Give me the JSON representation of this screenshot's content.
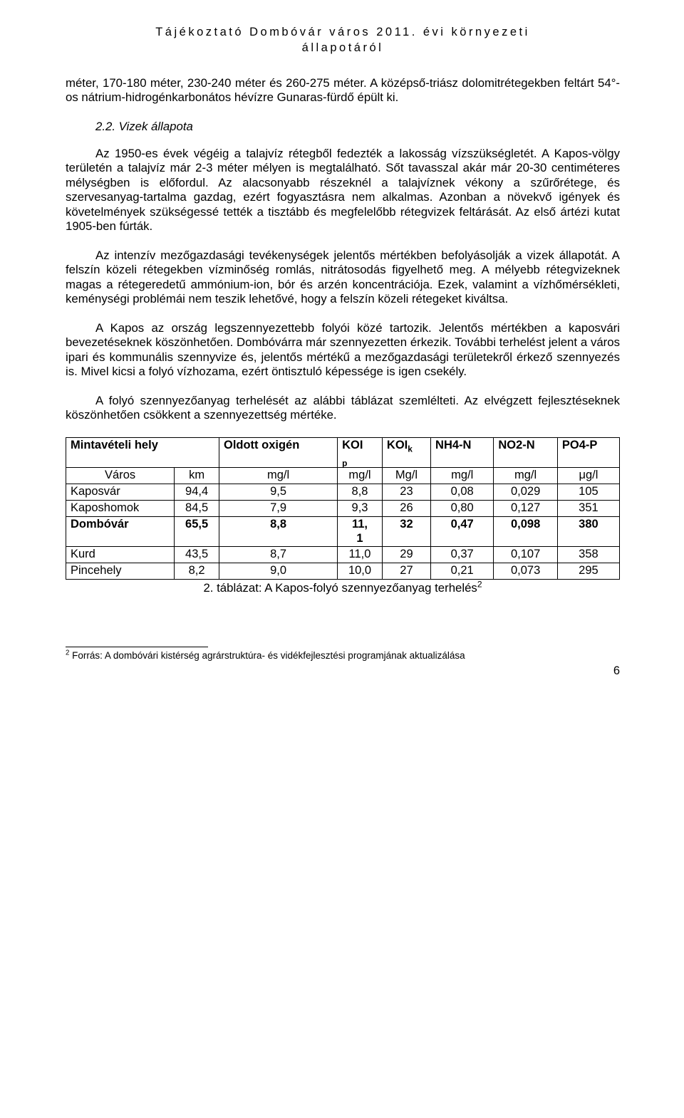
{
  "header": {
    "line1": "Tájékoztató Dombóvár város 2011. évi környezeti",
    "line2": "állapotáról"
  },
  "paragraphs": {
    "p1": "méter, 170-180 méter, 230-240 méter és 260-275 méter. A középső-triász dolomitrétegekben feltárt 54°-os nátrium-hidrogénkarbonátos hévízre Gunaras-fürdő épült ki.",
    "section_title": "2.2. Vizek állapota",
    "p2": "Az 1950-es évek végéig a talajvíz rétegből fedezték a lakosság vízszükségletét. A Kapos-völgy területén a talajvíz már 2-3 méter mélyen is megtalálható. Sőt tavasszal akár már 20-30 centiméteres mélységben is előfordul. Az alacsonyabb részeknél a talajvíznek vékony a szűrőrétege, és szervesanyag-tartalma gazdag, ezért fogyasztásra nem alkalmas. Azonban a növekvő igények és követelmények szükségessé tették a tisztább és megfelelőbb rétegvizek feltárását. Az első ártézi kutat 1905-ben fúrták.",
    "p3": "Az intenzív mezőgazdasági tevékenységek jelentős mértékben befolyásolják a vizek állapotát. A felszín közeli rétegekben vízminőség romlás, nitrátosodás figyelhető meg. A mélyebb rétegvizeknek magas a rétegeredetű ammónium-ion, bór és arzén koncentrációja. Ezek, valamint a vízhőmérsékleti, keménységi problémái nem teszik lehetővé, hogy a felszín közeli rétegeket kiváltsa.",
    "p4": "A Kapos az ország legszennyezettebb folyói közé tartozik. Jelentős mértékben a kaposvári bevezetéseknek köszönhetően. Dombóvárra már szennyezetten érkezik. További terhelést jelent a város ipari és kommunális szennyvize és, jelentős mértékű a mezőgazdasági területekről érkező szennyezés is. Mivel kicsi a folyó vízhozama, ezért öntisztuló képessége is igen csekély.",
    "p5": "A folyó szennyezőanyag terhelését az alábbi táblázat szemlélteti. Az elvégzett fejlesztéseknek köszönhetően csökkent a szennyezettség mértéke."
  },
  "table": {
    "headers": {
      "c1": "Mintavételi hely",
      "c2": "Oldott oxigén",
      "c3_pre": "KOI",
      "c3_sub": "p",
      "c4_pre": "KOI",
      "c4_sub": "k",
      "c5": "NH4-N",
      "c6": "NO2-N",
      "c7": "PO4-P"
    },
    "units": {
      "c1": "Város",
      "c2": "km",
      "c3": "mg/l",
      "c4": "mg/l",
      "c5": "Mg/l",
      "c6": "mg/l",
      "c7": "mg/l",
      "c8": "μg/l"
    },
    "rows": [
      {
        "name": "Kaposvár",
        "km": "94,4",
        "ox": "9,5",
        "koip": "8,8",
        "koik": "23",
        "nh4": "0,08",
        "no2": "0,029",
        "po4": "105",
        "bold": false
      },
      {
        "name": "Kaposhomok",
        "km": "84,5",
        "ox": "7,9",
        "koip": "9,3",
        "koik": "26",
        "nh4": "0,80",
        "no2": "0,127",
        "po4": "351",
        "bold": false
      },
      {
        "name": "Dombóvár",
        "km": "65,5",
        "ox": "8,8",
        "koip": "11,1",
        "koik": "32",
        "nh4": "0,47",
        "no2": "0,098",
        "po4": "380",
        "bold": true,
        "split": true,
        "koip_l1": "11,",
        "koip_l2": "1"
      },
      {
        "name": "Kurd",
        "km": "43,5",
        "ox": "8,7",
        "koip": "11,0",
        "koik": "29",
        "nh4": "0,37",
        "no2": "0,107",
        "po4": "358",
        "bold": false
      },
      {
        "name": "Pincehely",
        "km": "8,2",
        "ox": "9,0",
        "koip": "10,0",
        "koik": "27",
        "nh4": "0,21",
        "no2": "0,073",
        "po4": "295",
        "bold": false
      }
    ],
    "caption_pre": "2. táblázat: A Kapos-folyó szennyezőanyag terhelés",
    "caption_sup": "2"
  },
  "footnote": {
    "marker": "2",
    "text": " Forrás: A dombóvári kistérség agrárstruktúra- és vidékfejlesztési programjának aktualizálása"
  },
  "page_number": "6"
}
